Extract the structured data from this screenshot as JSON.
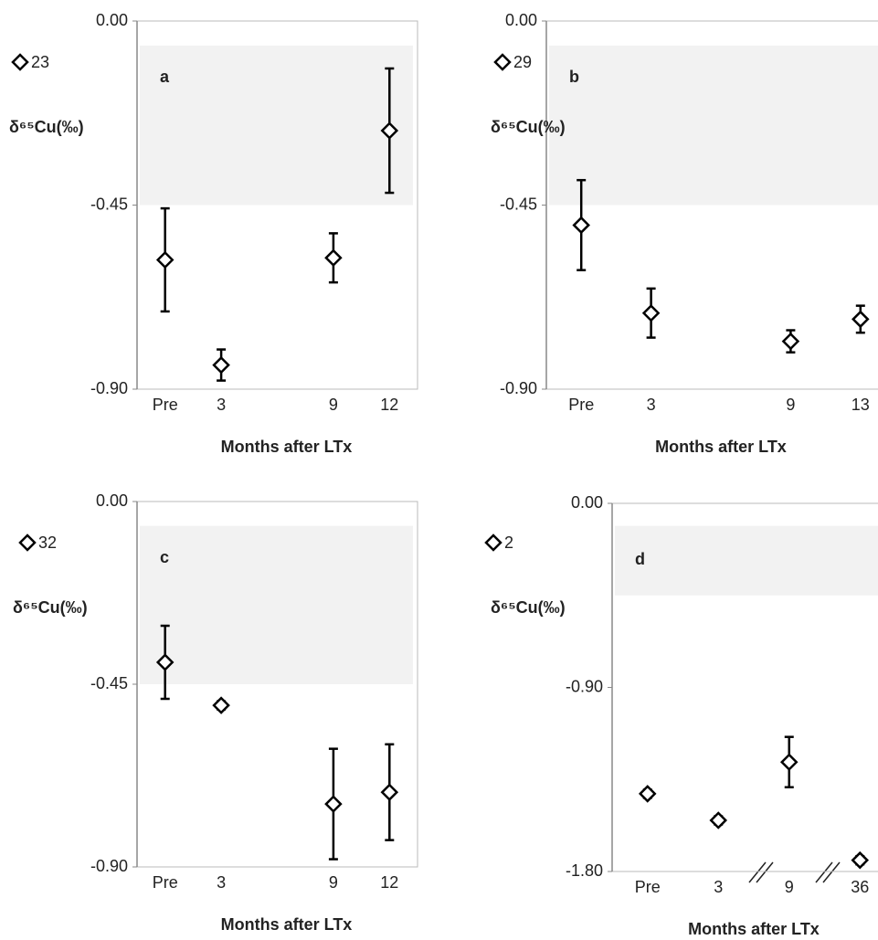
{
  "chart_data": [
    {
      "type": "scatter",
      "panel_label": "a",
      "y_label": "δ⁶⁵Cu(‰)",
      "x_label": "Months after LTx",
      "categories": [
        "Pre",
        "3",
        null,
        "9",
        "12"
      ],
      "series": [
        {
          "name": "23",
          "color": "#000000",
          "values": [
            -0.584,
            -0.841,
            null,
            -0.579,
            -0.268
          ],
          "errors": [
            0.126,
            0.038,
            null,
            0.06,
            0.152
          ]
        }
      ],
      "ylim": [
        -0.9,
        0
      ],
      "yticks": [
        {
          "value": 0,
          "label": "0.00"
        },
        {
          "value": -0.45,
          "label": "-0.45"
        },
        {
          "value": -0.9,
          "label": "-0.90"
        }
      ],
      "shaded_range": [
        -0.45,
        -0.06
      ]
    },
    {
      "type": "scatter",
      "panel_label": "b",
      "y_label": "δ⁶⁵Cu(‰)",
      "x_label": "Months after LTx",
      "categories": [
        "Pre",
        "3",
        null,
        "9",
        "13"
      ],
      "series": [
        {
          "name": "29",
          "color": "#000000",
          "values": [
            -0.499,
            -0.714,
            null,
            -0.783,
            -0.729
          ],
          "errors": [
            0.11,
            0.06,
            null,
            0.027,
            0.033
          ]
        }
      ],
      "ylim": [
        -0.9,
        0
      ],
      "yticks": [
        {
          "value": 0,
          "label": "0.00"
        },
        {
          "value": -0.45,
          "label": "-0.45"
        },
        {
          "value": -0.9,
          "label": "-0.90"
        }
      ],
      "shaded_range": [
        -0.45,
        -0.06
      ]
    },
    {
      "type": "scatter",
      "panel_label": "c",
      "y_label": "δ⁶⁵Cu(‰)",
      "x_label": "Months after LTx",
      "categories": [
        "Pre",
        "3",
        null,
        "9",
        "12"
      ],
      "series": [
        {
          "name": "32",
          "color": "#000000",
          "values": [
            -0.396,
            -0.502,
            null,
            -0.745,
            -0.716
          ],
          "errors": [
            0.09,
            0.01,
            null,
            0.136,
            0.118
          ]
        }
      ],
      "ylim": [
        -0.9,
        0
      ],
      "yticks": [
        {
          "value": 0,
          "label": "0.00"
        },
        {
          "value": -0.45,
          "label": "-0.45"
        },
        {
          "value": -0.9,
          "label": "-0.90"
        }
      ],
      "shaded_range": [
        -0.45,
        -0.06
      ]
    },
    {
      "type": "scatter",
      "panel_label": "d",
      "y_label": "δ⁶⁵Cu(‰)",
      "x_label": "Months after LTx",
      "categories": [
        "Pre",
        "3",
        "9",
        "36"
      ],
      "series": [
        {
          "name": "2",
          "color": "#000000",
          "values": [
            -1.42,
            -1.55,
            -1.265,
            -1.745
          ],
          "errors": [
            0.02,
            0.02,
            0.123,
            0.02
          ]
        }
      ],
      "ylim": [
        -1.8,
        0
      ],
      "yticks": [
        {
          "value": 0,
          "label": "0.00"
        },
        {
          "value": -0.9,
          "label": "-0.90"
        },
        {
          "value": -1.8,
          "label": "-1.80"
        }
      ],
      "shaded_range": [
        -0.45,
        -0.11
      ]
    }
  ]
}
